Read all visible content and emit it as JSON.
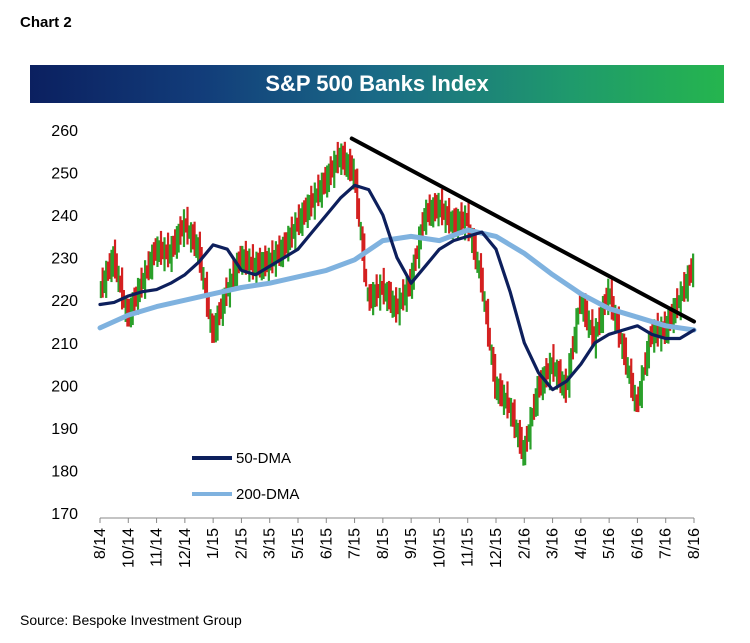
{
  "header": {
    "chart_label": "Chart 2"
  },
  "footer": {
    "source": "Source: Bespoke Investment Group"
  },
  "chart_data": {
    "type": "line",
    "title": "S&P 500 Banks Index",
    "xlabel": "",
    "ylabel": "",
    "ylim": [
      170,
      260
    ],
    "y_ticks": [
      170,
      180,
      190,
      200,
      210,
      220,
      230,
      240,
      250,
      260
    ],
    "x_ticks": [
      "8/14",
      "10/14",
      "11/14",
      "12/14",
      "1/15",
      "2/15",
      "3/15",
      "5/15",
      "6/15",
      "7/15",
      "8/15",
      "9/15",
      "10/15",
      "11/15",
      "12/15",
      "2/16",
      "3/16",
      "4/16",
      "5/16",
      "6/16",
      "7/16",
      "8/16"
    ],
    "grid": false,
    "legend_position": "bottom-left",
    "colors": {
      "price_up": "#2aa02a",
      "price_down": "#d42020",
      "dma50": "#0d1f5c",
      "dma200": "#7fb2df",
      "trendline": "#000000"
    },
    "series": [
      {
        "name": "50-DMA",
        "x": [
          0,
          0.5,
          1,
          1.5,
          2,
          2.5,
          3,
          3.5,
          4,
          4.5,
          5,
          5.5,
          6,
          6.5,
          7,
          7.5,
          8,
          8.5,
          9,
          9.5,
          10,
          10.5,
          11,
          11.5,
          12,
          12.5,
          13,
          13.5,
          14,
          14.5,
          15,
          15.5,
          16,
          16.5,
          17,
          17.5,
          18,
          18.5,
          19,
          19.5,
          20,
          20.5,
          21
        ],
        "values": [
          219,
          219.5,
          221,
          222,
          222.5,
          224,
          226,
          229,
          233,
          232,
          227,
          226,
          228,
          230,
          232,
          236,
          240,
          244,
          247,
          246,
          240,
          230,
          224,
          228,
          232,
          234,
          235,
          236,
          232,
          222,
          210,
          203,
          199,
          201,
          205,
          210,
          212,
          213,
          214,
          212,
          211,
          211,
          213
        ]
      },
      {
        "name": "200-DMA",
        "x": [
          0,
          1,
          2,
          3,
          4,
          5,
          6,
          7,
          8,
          9,
          10,
          11,
          12,
          13,
          14,
          15,
          16,
          17,
          18,
          19,
          20,
          21
        ],
        "values": [
          213.5,
          216.5,
          218.5,
          220,
          221.5,
          223,
          224,
          225.5,
          227,
          229.5,
          234,
          235,
          234,
          236.5,
          235,
          231,
          226,
          221.5,
          218,
          216,
          214,
          213
        ]
      },
      {
        "name": "Price",
        "x": [
          0,
          0.5,
          1,
          1.5,
          2,
          2.5,
          3,
          3.5,
          4,
          4.5,
          5,
          5.5,
          6,
          6.5,
          7,
          7.5,
          8,
          8.5,
          9,
          9.5,
          10,
          10.5,
          11,
          11.5,
          12,
          12.5,
          13,
          13.5,
          14,
          14.5,
          15,
          15.5,
          16,
          16.5,
          17,
          17.5,
          18,
          18.5,
          19,
          19.5,
          20,
          20.5,
          21
        ],
        "values": [
          222,
          230,
          216,
          224,
          232,
          231,
          238,
          232,
          212,
          222,
          230,
          228,
          229,
          232,
          238,
          243,
          248,
          254,
          250,
          220,
          223,
          218,
          224,
          240,
          242,
          238,
          239,
          225,
          200,
          195,
          184,
          199,
          205,
          199,
          220,
          211,
          222,
          209,
          195,
          212,
          213,
          220,
          228
        ]
      }
    ],
    "trendline": {
      "x": [
        8.9,
        21
      ],
      "values": [
        258,
        215
      ]
    },
    "legend": [
      "50-DMA",
      "200-DMA"
    ]
  }
}
